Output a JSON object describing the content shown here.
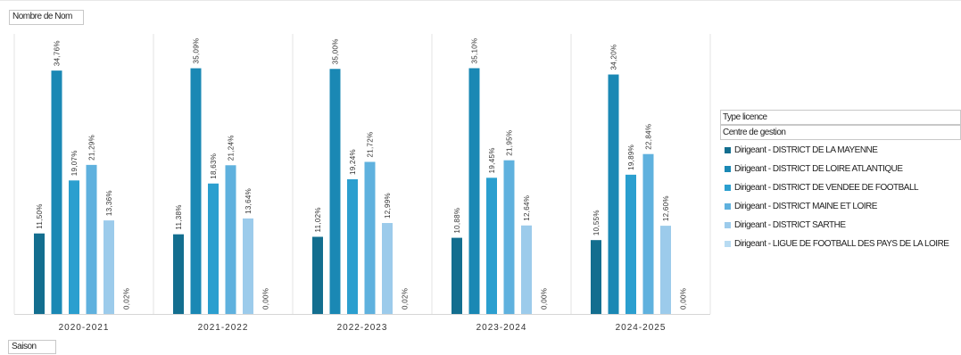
{
  "measure_field": "Nombre de Nom",
  "axis_field": "Saison",
  "legend": {
    "header_1": "Type licence",
    "header_2": "Centre de gestion"
  },
  "chart_data": {
    "type": "bar",
    "categories": [
      "2020-2021",
      "2021-2022",
      "2022-2023",
      "2023-2024",
      "2024-2025"
    ],
    "series": [
      {
        "name": "Dirigeant - DISTRICT DE LA MAYENNE",
        "color": "#136e8f",
        "values": [
          11.5,
          11.38,
          11.02,
          10.88,
          10.55
        ],
        "labels": [
          "11,50%",
          "11,38%",
          "11,02%",
          "10,88%",
          "10,55%"
        ]
      },
      {
        "name": "Dirigeant - DISTRICT DE LOIRE ATLANTIQUE",
        "color": "#1a88b4",
        "values": [
          34.76,
          35.09,
          35.0,
          35.1,
          34.2
        ],
        "labels": [
          "34,76%",
          "35,09%",
          "35,00%",
          "35,10%",
          "34,20%"
        ]
      },
      {
        "name": "Dirigeant - DISTRICT DE VENDEE DE FOOTBALL",
        "color": "#2b9fcf",
        "values": [
          19.07,
          18.63,
          19.24,
          19.45,
          19.89
        ],
        "labels": [
          "19,07%",
          "18,63%",
          "19,24%",
          "19,45%",
          "19,89%"
        ]
      },
      {
        "name": "Dirigeant - DISTRICT MAINE ET LOIRE",
        "color": "#5fb1de",
        "values": [
          21.29,
          21.24,
          21.72,
          21.95,
          22.84
        ],
        "labels": [
          "21,29%",
          "21,24%",
          "21,72%",
          "21,95%",
          "22,84%"
        ]
      },
      {
        "name": "Dirigeant - DISTRICT SARTHE",
        "color": "#9ccbeb",
        "values": [
          13.36,
          13.64,
          12.99,
          12.64,
          12.6
        ],
        "labels": [
          "13,36%",
          "13,64%",
          "12,99%",
          "12,64%",
          "12,60%"
        ]
      },
      {
        "name": "Dirigeant - LIGUE DE FOOTBALL DES PAYS DE LA LOIRE",
        "color": "#b8dbf2",
        "values": [
          0.02,
          0.0,
          0.02,
          0.0,
          0.0
        ],
        "labels": [
          "0,02%",
          "0,00%",
          "0,02%",
          "0,00%",
          "0,00%"
        ]
      }
    ],
    "ylim": [
      0,
      40
    ],
    "grid": false,
    "legend_position": "right"
  }
}
